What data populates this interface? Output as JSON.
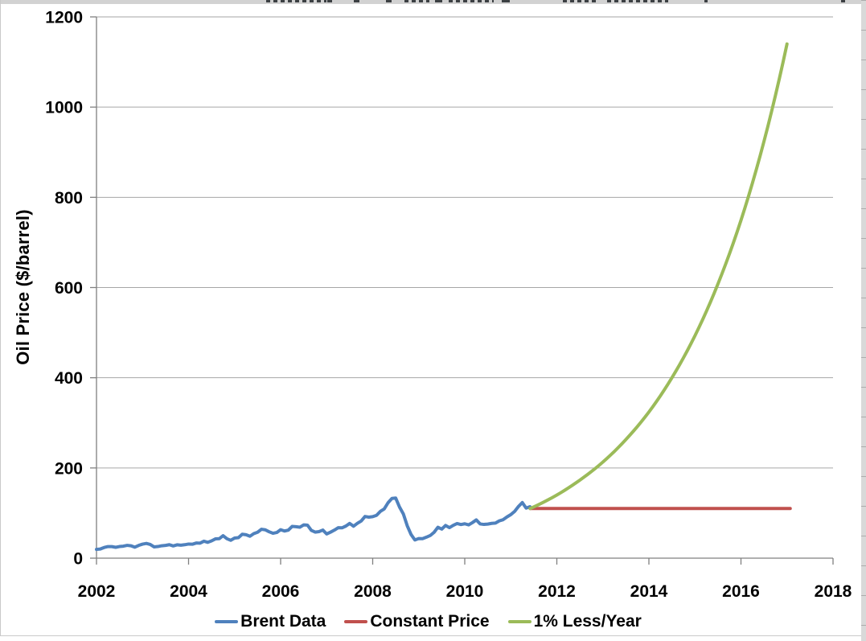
{
  "colors": {
    "background": "#FFFFFF",
    "gridline": "#A6A6A6",
    "axis": "#808080",
    "text": "#000000",
    "brent_blue": "#4F81BD",
    "constant_red": "#C0504D",
    "less_green": "#9BBB59"
  },
  "decorations": {
    "top_strip_color": "#D2D2D2",
    "fragment_color": "#3C4043",
    "top_fragments": [
      {
        "x": 331,
        "w": 75,
        "style": "dashed"
      },
      {
        "x": 407,
        "w": 6,
        "style": "solid"
      },
      {
        "x": 440,
        "w": 7,
        "style": "solid"
      },
      {
        "x": 480,
        "w": 7,
        "style": "solid"
      },
      {
        "x": 503,
        "w": 31,
        "style": "dashed"
      },
      {
        "x": 541,
        "w": 9,
        "style": "solid"
      },
      {
        "x": 558,
        "w": 56,
        "style": "dashed"
      },
      {
        "x": 624,
        "w": 10,
        "style": "solid"
      },
      {
        "x": 700,
        "w": 42,
        "style": "dashed"
      },
      {
        "x": 755,
        "w": 76,
        "style": "dashed"
      },
      {
        "x": 876,
        "w": 4,
        "style": "solid"
      },
      {
        "x": 1046,
        "w": 5,
        "style": "solid"
      }
    ],
    "scrollbar_track_color": "#D9D9D9",
    "scrollbar_tick_color": "#ACACAC",
    "border_color": "#C9C9C9"
  },
  "chart_data": {
    "type": "line",
    "title": "",
    "xlabel": "",
    "ylabel": "Oil Price ($/barrel)",
    "xlim": [
      2002,
      2018
    ],
    "ylim": [
      0,
      1200
    ],
    "x_ticks": [
      2002,
      2004,
      2006,
      2008,
      2010,
      2012,
      2014,
      2016,
      2018
    ],
    "y_ticks": [
      0,
      200,
      400,
      600,
      800,
      1000,
      1200
    ],
    "grid": "horizontal major gridlines only",
    "legend_position": "bottom-center",
    "series": [
      {
        "name": "Brent Data",
        "color": "#4F81BD",
        "sampling": "monthly",
        "x_start": 2002.0,
        "x_step_years": 0.083333,
        "values": [
          19.5,
          20.3,
          23.7,
          25.7,
          25.6,
          24.1,
          25.8,
          26.6,
          28.4,
          27.5,
          24.3,
          28.3,
          31.1,
          32.7,
          30.5,
          25.0,
          25.8,
          27.5,
          28.3,
          29.9,
          27.1,
          29.6,
          28.7,
          29.8,
          31.3,
          30.9,
          33.6,
          33.3,
          37.6,
          35.1,
          38.3,
          42.7,
          43.2,
          49.8,
          43.1,
          39.6,
          44.5,
          45.5,
          53.1,
          51.9,
          48.6,
          54.4,
          57.5,
          64.1,
          62.9,
          58.5,
          55.2,
          56.9,
          63.1,
          60.2,
          62.1,
          70.4,
          69.8,
          68.6,
          73.7,
          73.2,
          61.7,
          57.8,
          58.9,
          62.3,
          53.7,
          57.6,
          62.1,
          67.5,
          67.2,
          71.1,
          77.0,
          70.8,
          77.2,
          82.3,
          92.4,
          90.9,
          92.0,
          95.0,
          103.7,
          109.1,
          122.8,
          132.3,
          133.2,
          113.2,
          97.9,
          71.9,
          52.5,
          40.4,
          43.4,
          43.3,
          46.5,
          50.2,
          57.3,
          68.6,
          64.4,
          72.5,
          67.7,
          72.8,
          76.7,
          74.5,
          76.2,
          73.8,
          78.8,
          84.8,
          75.9,
          74.8,
          75.6,
          77.1,
          77.8,
          82.7,
          85.3,
          91.4,
          96.5,
          103.7,
          114.6,
          123.3,
          111.0,
          114.0
        ]
      },
      {
        "name": "Constant Price",
        "color": "#C0504D",
        "sampling": "segment",
        "points": [
          [
            2011.42,
            110
          ],
          [
            2017.07,
            110
          ]
        ]
      },
      {
        "name": "1% Less/Year",
        "color": "#9BBB59",
        "sampling": "exponential",
        "points": [
          [
            2011.42,
            110
          ],
          [
            2012.0,
            140
          ],
          [
            2012.5,
            173
          ],
          [
            2013.0,
            213
          ],
          [
            2013.5,
            263
          ],
          [
            2014.0,
            324
          ],
          [
            2014.5,
            400
          ],
          [
            2015.0,
            493
          ],
          [
            2015.5,
            608
          ],
          [
            2016.0,
            749
          ],
          [
            2016.5,
            924
          ],
          [
            2017.0,
            1140
          ]
        ]
      }
    ]
  }
}
